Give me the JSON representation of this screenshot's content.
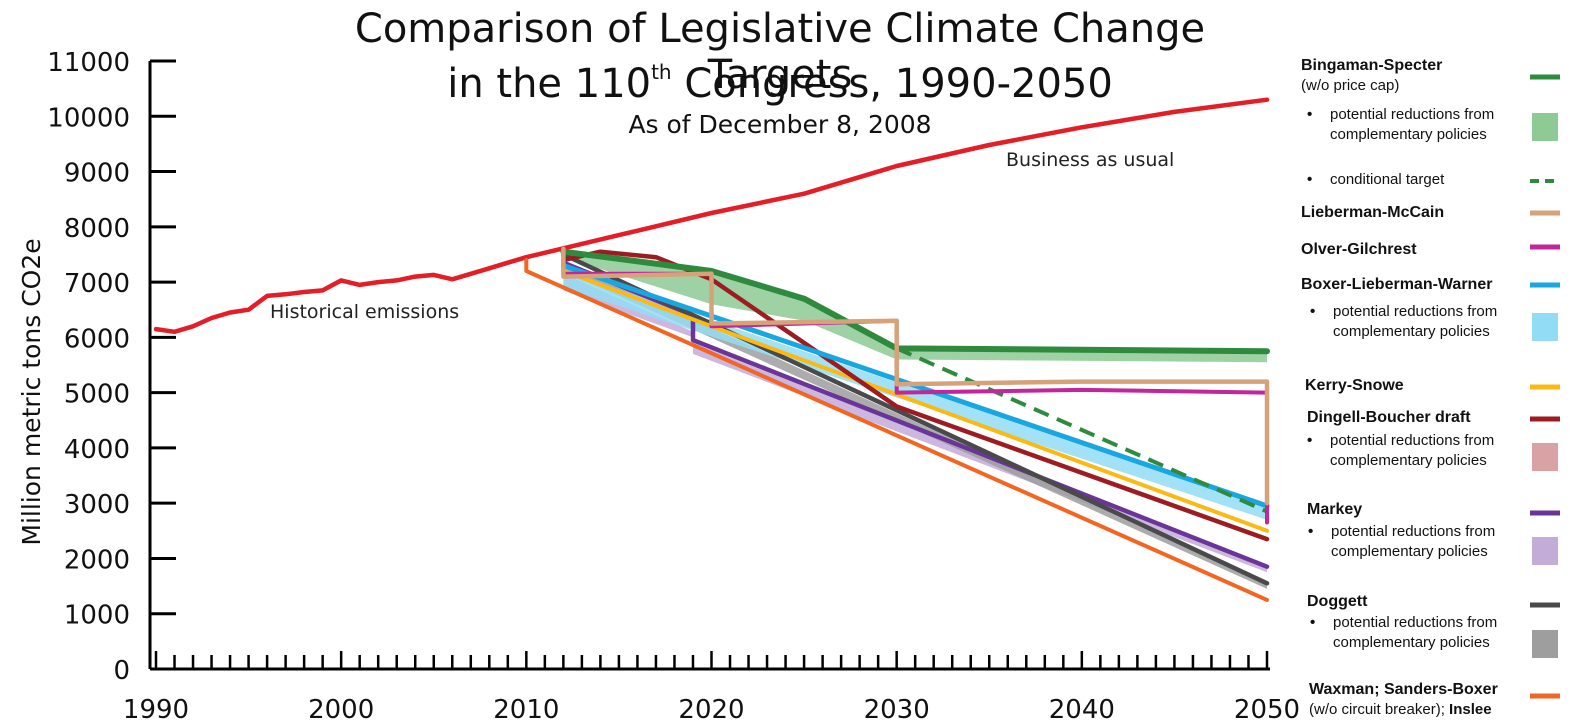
{
  "title_line1": "Comparison of Legislative Climate Change Targets",
  "title_line2_pre": "in the 110",
  "title_line2_sup": "th",
  "title_line2_post": " Congress, 1990-2050",
  "subtitle": "As of December 8, 2008",
  "colors": {
    "bau": "#e31e26",
    "bingaman": "#2e8b3e",
    "bingaman_band": "#8dca94",
    "lieberman_mccain": "#d6a27a",
    "olver": "#c4259a",
    "boxer": "#18a7e0",
    "boxer_band": "#92dcf5",
    "kerry": "#fbb915",
    "dingell": "#9c1c22",
    "dingell_band": "#d9a2a4",
    "markey": "#6a3499",
    "markey_band": "#c3acd8",
    "doggett": "#4a4a4a",
    "doggett_band": "#9e9e9e",
    "waxman": "#f26522"
  },
  "chart_data": {
    "type": "line",
    "title": "Comparison of Legislative Climate Change Targets in the 110th Congress, 1990-2050",
    "subtitle": "As of December 8, 2008",
    "ylabel": "Million metric tons CO2e",
    "xlim": [
      1990,
      2050
    ],
    "ylim": [
      0,
      11000
    ],
    "x_ticks": [
      1990,
      2000,
      2010,
      2020,
      2030,
      2040,
      2050
    ],
    "y_ticks": [
      0,
      1000,
      2000,
      3000,
      4000,
      5000,
      6000,
      7000,
      8000,
      9000,
      10000,
      11000
    ],
    "annotations": [
      "Historical emissions",
      "Business as usual"
    ],
    "series": [
      {
        "key": "bau",
        "name": "Business as usual",
        "width": 4.5,
        "x": [
          1990,
          1991,
          1992,
          1993,
          1994,
          1995,
          1996,
          1997,
          1998,
          1999,
          2000,
          2001,
          2002,
          2003,
          2004,
          2005,
          2006,
          2007,
          2008,
          2009,
          2010,
          2015,
          2020,
          2025,
          2030,
          2035,
          2040,
          2045,
          2050
        ],
        "y": [
          6150,
          6100,
          6200,
          6350,
          6450,
          6500,
          6750,
          6780,
          6820,
          6850,
          7030,
          6950,
          7000,
          7030,
          7100,
          7130,
          7050,
          7150,
          7250,
          7350,
          7450,
          7850,
          8250,
          8600,
          9100,
          9480,
          9800,
          10080,
          10300
        ]
      },
      {
        "key": "waxman",
        "name": "Waxman; Sanders-Boxer",
        "width": 4,
        "x": [
          2010,
          2010,
          2050
        ],
        "y": [
          7400,
          7200,
          1250
        ]
      },
      {
        "key": "markey",
        "name": "Markey",
        "width": 4.5,
        "x": [
          2012,
          2019,
          2019,
          2050
        ],
        "y": [
          7350,
          6400,
          5950,
          1850
        ]
      },
      {
        "key": "doggett",
        "name": "Doggett",
        "width": 4.5,
        "x": [
          2012,
          2050
        ],
        "y": [
          7500,
          1550
        ]
      },
      {
        "key": "kerry",
        "name": "Kerry-Snowe",
        "width": 4,
        "x": [
          2012,
          2020,
          2050
        ],
        "y": [
          7200,
          6200,
          2500
        ]
      },
      {
        "key": "dingell",
        "name": "Dingell-Boucher draft",
        "width": 4.5,
        "x": [
          2012,
          2014,
          2017,
          2020,
          2030,
          2050
        ],
        "y": [
          7400,
          7550,
          7450,
          7050,
          4750,
          2350
        ]
      },
      {
        "key": "boxer",
        "name": "Boxer-Lieberman-Warner",
        "width": 5,
        "x": [
          2012,
          2050
        ],
        "y": [
          7300,
          2950
        ]
      },
      {
        "key": "bingaman_cond",
        "name": "conditional target",
        "width": 4,
        "dash": "16 9",
        "x": [
          2030,
          2050
        ],
        "y": [
          5800,
          2850
        ]
      },
      {
        "key": "bingaman",
        "name": "Bingaman-Specter",
        "width": 6,
        "x": [
          2012,
          2020,
          2025,
          2030,
          2050
        ],
        "y": [
          7550,
          7200,
          6700,
          5800,
          5750
        ]
      },
      {
        "key": "olver",
        "name": "Olver-Gilchrest",
        "width": 4,
        "x": [
          2012,
          2012,
          2020,
          2020,
          2030,
          2030,
          2040,
          2050,
          2050
        ],
        "y": [
          7600,
          7150,
          7150,
          6200,
          6300,
          5000,
          5050,
          5000,
          2650
        ]
      },
      {
        "key": "lieberman_mccain",
        "name": "Lieberman-McCain",
        "width": 4.5,
        "x": [
          2012,
          2012,
          2020,
          2020,
          2030,
          2030,
          2040,
          2050,
          2050
        ],
        "y": [
          7600,
          7100,
          7150,
          6250,
          6300,
          5150,
          5200,
          5200,
          3000
        ]
      }
    ],
    "bands": [
      {
        "key": "markey_band",
        "name": "potential reductions from complementary policies (Markey)",
        "x": [
          2012,
          2019,
          2019,
          2050
        ],
        "upper": [
          7150,
          6100,
          5900,
          1850
        ],
        "lower": [
          6850,
          6000,
          5700,
          1750
        ]
      },
      {
        "key": "doggett_band",
        "name": "potential reductions from complementary policies (Doggett)",
        "x": [
          2012,
          2050
        ],
        "upper": [
          7400,
          1550
        ],
        "lower": [
          7200,
          1450
        ]
      },
      {
        "key": "boxer_band",
        "name": "potential reductions from complementary policies (Boxer-Lieberman-Warner)",
        "x": [
          2012,
          2050
        ],
        "upper": [
          7200,
          2950
        ],
        "lower": [
          6900,
          2700
        ]
      },
      {
        "key": "bingaman_band",
        "name": "potential reductions from complementary policies (Bingaman-Specter)",
        "x": [
          2012,
          2020,
          2025,
          2030,
          2050
        ],
        "upper": [
          7550,
          7200,
          6700,
          5800,
          5750
        ],
        "lower": [
          7450,
          6600,
          6300,
          5600,
          5550
        ]
      }
    ]
  },
  "legend": {
    "bingaman_name": "Bingaman-Specter",
    "bingaman_sub": "(w/o price cap)",
    "bingaman_bullet": "potential reductions from complementary policies",
    "bingaman_cond": "conditional target",
    "lieberman_mccain": "Lieberman-McCain",
    "olver": "Olver-Gilchrest",
    "boxer_name": "Boxer-Lieberman-Warner",
    "boxer_bullet": "potential reductions from complementary policies",
    "kerry": "Kerry-Snowe",
    "dingell_name": "Dingell-Boucher draft",
    "dingell_bullet": "potential reductions from complementary policies",
    "markey_name": "Markey",
    "markey_bullet": "potential reductions from complementary policies",
    "doggett_name": "Doggett",
    "doggett_bullet": "potential reductions from complementary policies",
    "waxman_name": "Waxman; Sanders-Boxer",
    "waxman_sub": "(w/o circuit breaker); ",
    "waxman_inslee": "Inslee"
  }
}
